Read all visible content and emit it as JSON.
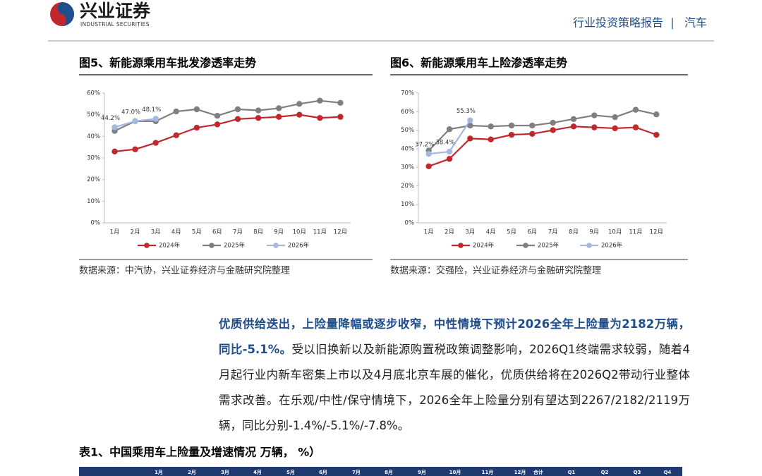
{
  "header": {
    "brand": "兴业证券",
    "brand_en": "INDUSTRIAL SECURITIES",
    "report_type": "行业投资策略报告",
    "separator": "|",
    "sector": "汽车"
  },
  "chart_data": [
    {
      "type": "line",
      "title": "图5、新能源乘用车批发渗透率走势",
      "categories": [
        "1月",
        "2月",
        "3月",
        "4月",
        "5月",
        "6月",
        "7月",
        "8月",
        "9月",
        "10月",
        "11月",
        "12月"
      ],
      "series": [
        {
          "name": "2024年",
          "color": "#c0282e",
          "values": [
            33,
            34,
            37,
            40.5,
            44,
            45.5,
            48,
            48.5,
            49,
            50,
            48.5,
            49
          ]
        },
        {
          "name": "2025年",
          "color": "#7f7f7f",
          "values": [
            42.5,
            47,
            47,
            51.5,
            52.5,
            49.5,
            52.5,
            52,
            53,
            55,
            56.5,
            55.5
          ]
        },
        {
          "name": "2026年",
          "color": "#a3b9e0",
          "values": [
            44.2,
            47.0,
            48.1,
            null,
            null,
            null,
            null,
            null,
            null,
            null,
            null,
            null
          ],
          "value_labels": [
            "44.2%",
            "47.0%",
            "48.1%",
            null,
            null,
            null,
            null,
            null,
            null,
            null,
            null,
            null
          ]
        }
      ],
      "ylim": [
        0,
        60
      ],
      "yticks": [
        {
          "value": 0,
          "label": "0%"
        },
        {
          "value": 10,
          "label": "10%"
        },
        {
          "value": 20,
          "label": "20%"
        },
        {
          "value": 30,
          "label": "30%"
        },
        {
          "value": 40,
          "label": "40%"
        },
        {
          "value": 50,
          "label": "50%"
        },
        {
          "value": 60,
          "label": "60%"
        }
      ],
      "grid": false,
      "legend": "bottom",
      "source": "数据来源：中汽协，兴业证券经济与金融研究院整理"
    },
    {
      "type": "line",
      "title": "图6、新能源乘用车上险渗透率走势",
      "categories": [
        "1月",
        "2月",
        "3月",
        "4月",
        "5月",
        "6月",
        "7月",
        "8月",
        "9月",
        "10月",
        "11月",
        "12月"
      ],
      "series": [
        {
          "name": "2024年",
          "color": "#c0282e",
          "values": [
            30.5,
            34.5,
            45.5,
            45,
            47.5,
            48,
            50,
            52,
            51.5,
            51,
            51.5,
            47.5
          ]
        },
        {
          "name": "2025年",
          "color": "#7f7f7f",
          "values": [
            39,
            50.5,
            52.5,
            52,
            52.5,
            52.5,
            54,
            56,
            58,
            57,
            61,
            58.5
          ]
        },
        {
          "name": "2026年",
          "color": "#a3b9e0",
          "values": [
            37.2,
            38.4,
            55.3,
            null,
            null,
            null,
            null,
            null,
            null,
            null,
            null,
            null
          ],
          "value_labels": [
            "37.2%",
            "38.4%",
            "55.3%",
            null,
            null,
            null,
            null,
            null,
            null,
            null,
            null,
            null
          ]
        }
      ],
      "ylim": [
        0,
        70
      ],
      "yticks": [
        {
          "value": 0,
          "label": "0%"
        },
        {
          "value": 10,
          "label": "10%"
        },
        {
          "value": 20,
          "label": "20%"
        },
        {
          "value": 30,
          "label": "30%"
        },
        {
          "value": 40,
          "label": "40%"
        },
        {
          "value": 50,
          "label": "50%"
        },
        {
          "value": 60,
          "label": "60%"
        },
        {
          "value": 70,
          "label": "70%"
        }
      ],
      "grid": false,
      "legend": "bottom",
      "source": "数据来源：交强险，兴业证券经济与金融研究院整理"
    }
  ],
  "paragraph": {
    "lead": "优质供给迭出，上险量降幅或逐步收窄，中性情境下预计2026全年上险量为2182万辆，同比-5.1%。",
    "body": "受以旧换新以及新能源购置税政策调整影响，2026Q1终端需求较弱，随着4月起行业内新车密集上市以及4月底北京车展的催化，优质供给将在2026Q2带动行业整体需求改善。在乐观/中性/保守情境下，2026全年上险量分别有望达到2267/2182/2119万辆，同比分别-1.4%/-5.1%/-7.8%。"
  },
  "table": {
    "title": "表1、中国乘用车上险量及增速情况 万辆，  %）",
    "header": [
      "1月",
      "2月",
      "3月",
      "4月",
      "5月",
      "6月",
      "7月",
      "8月",
      "9月",
      "10月",
      "11月",
      "12月",
      "合计",
      "Q1",
      "Q2",
      "Q3",
      "Q4"
    ]
  }
}
